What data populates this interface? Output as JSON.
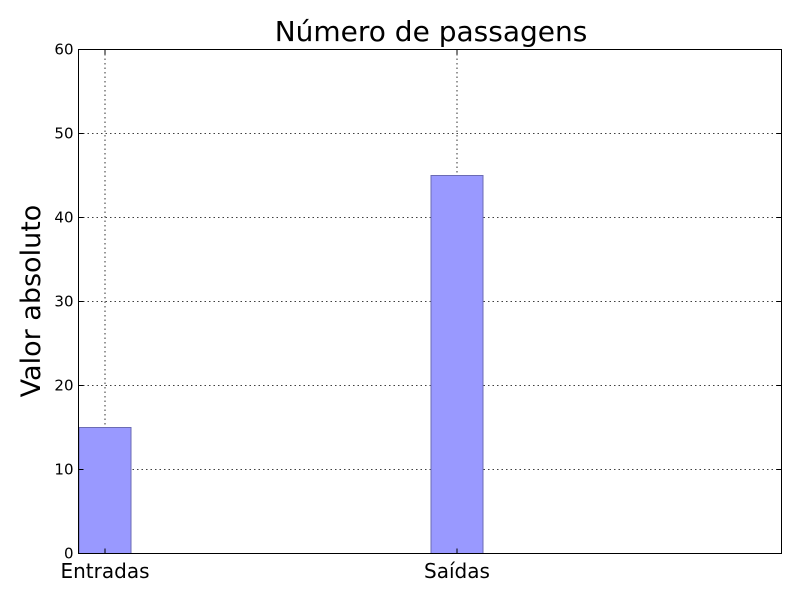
{
  "chart_data": {
    "type": "bar",
    "title": "Número de passagens",
    "xlabel": "",
    "ylabel": "Valor absoluto",
    "categories": [
      "Entradas",
      "Saídas"
    ],
    "values": [
      15,
      45
    ],
    "ylim": [
      0,
      60
    ],
    "yticks": [
      0,
      10,
      20,
      30,
      40,
      50,
      60
    ],
    "grid": true,
    "bar_color": "#9999ff",
    "bar_edge_color": "#6b6bb3"
  }
}
